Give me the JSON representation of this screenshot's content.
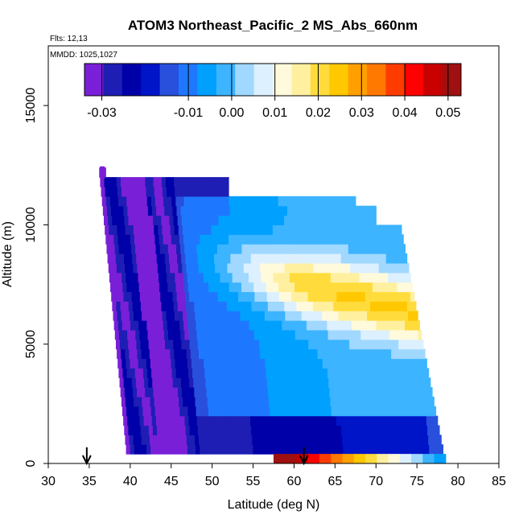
{
  "chart_data": {
    "type": "heatmap",
    "title": "ATOM3 Northeast_Pacific_2 MS_Abs_660nm",
    "flights_label": "Flts: 12,13",
    "dates_label": "MMDD: 1025,1027",
    "xlabel": "Latitude (deg N)",
    "ylabel": "Altitude (m)",
    "xlim": [
      30,
      85
    ],
    "ylim": [
      0,
      17500
    ],
    "x_ticks": [
      30,
      35,
      40,
      45,
      50,
      55,
      60,
      65,
      70,
      75,
      80,
      85
    ],
    "y_ticks": [
      0,
      5000,
      10000,
      15000
    ],
    "x_tick_labels": [
      "30",
      "35",
      "40",
      "45",
      "50",
      "55",
      "60",
      "65",
      "70",
      "75",
      "80",
      "85"
    ],
    "y_tick_labels": [
      "0",
      "5000",
      "10000",
      "15000"
    ],
    "colorbar": {
      "range": [
        -0.034,
        0.053
      ],
      "ticks": [
        -0.03,
        -0.01,
        0.0,
        0.01,
        0.02,
        0.03,
        0.04,
        0.05
      ],
      "tick_labels": [
        "-0.03",
        "-0.01",
        "0.00",
        "0.01",
        "0.02",
        "0.03",
        "0.04",
        "0.05"
      ],
      "colors": [
        "#7a1fd8",
        "#1e1eb4",
        "#0000a8",
        "#0014c8",
        "#2850dc",
        "#1e78ff",
        "#00a0ff",
        "#3cb4ff",
        "#a0d8ff",
        "#dcf0ff",
        "#fffadc",
        "#fff0a0",
        "#ffdc3c",
        "#ffc800",
        "#ffa000",
        "#ff7800",
        "#ff3c00",
        "#ff0000",
        "#c80000",
        "#a01010"
      ],
      "position": "top"
    },
    "arrows_x": [
      34.7,
      61.2
    ],
    "bottom_band": {
      "lat_range": [
        57.5,
        78.5
      ],
      "alt_range": [
        0,
        400
      ],
      "values": [
        0.053,
        0.05,
        0.046,
        0.042,
        0.038,
        0.035,
        0.03,
        0.025,
        0.02,
        0.015,
        0.01,
        0.006,
        0.003,
        0.0,
        -0.004
      ]
    },
    "grid": false,
    "legend_placement": "top"
  }
}
